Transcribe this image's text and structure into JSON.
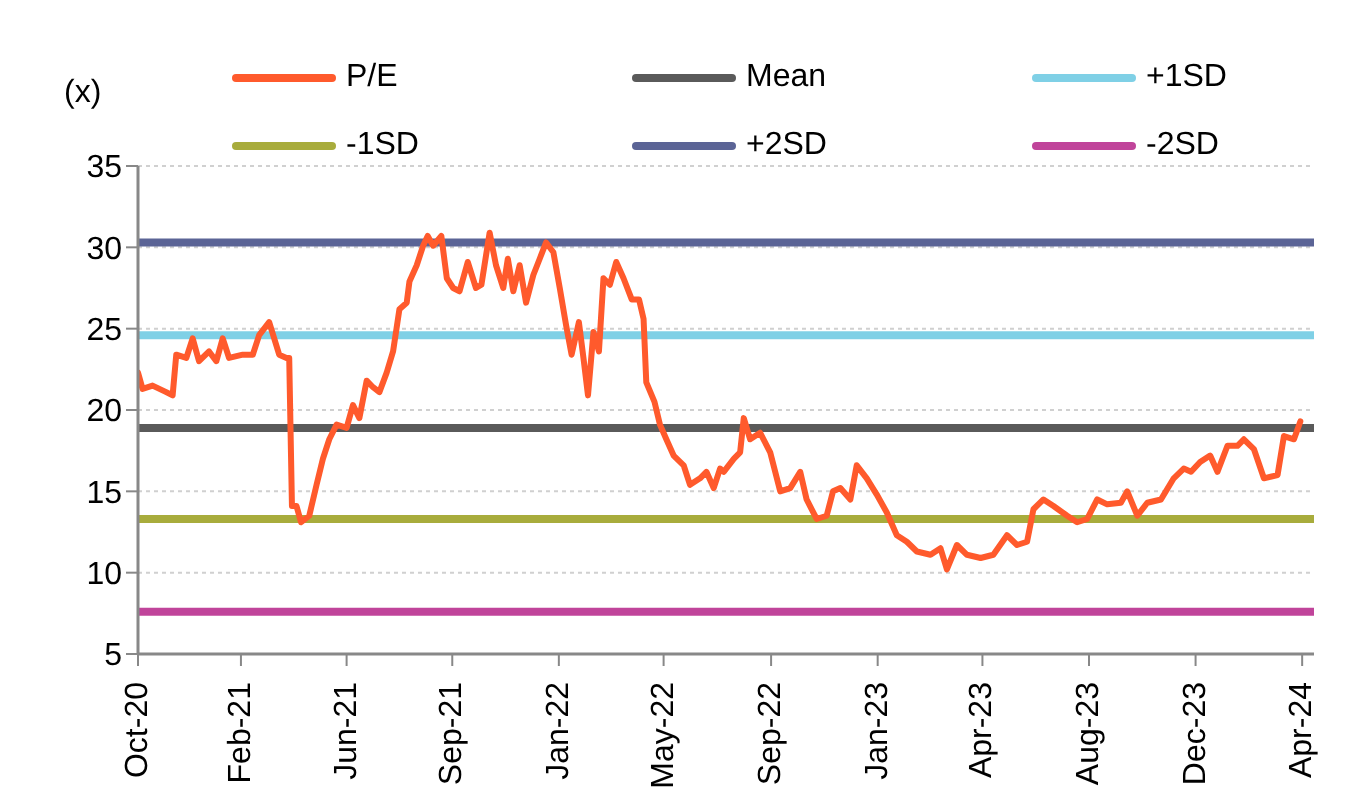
{
  "chart_data": {
    "type": "line",
    "ylabel": "(x)",
    "xlim": [
      "2020-10-15",
      "2024-04-28"
    ],
    "ylim": [
      5,
      35
    ],
    "yticks": [
      5,
      10,
      15,
      20,
      25,
      30,
      35
    ],
    "xticks": [
      {
        "value": "2020-10-15",
        "label": "Oct-20"
      },
      {
        "value": "2021-02-05",
        "label": "Feb-21"
      },
      {
        "value": "2021-06-01",
        "label": "Jun-21"
      },
      {
        "value": "2021-09-25",
        "label": "Sep-21"
      },
      {
        "value": "2022-01-20",
        "label": "Jan-22"
      },
      {
        "value": "2022-05-15",
        "label": "May-22"
      },
      {
        "value": "2022-09-10",
        "label": "Sep-22"
      },
      {
        "value": "2023-01-05",
        "label": "Jan-23"
      },
      {
        "value": "2023-04-30",
        "label": "Apr-23"
      },
      {
        "value": "2023-08-25",
        "label": "Aug-23"
      },
      {
        "value": "2023-12-20",
        "label": "Dec-23"
      },
      {
        "value": "2024-04-15",
        "label": "Apr-24"
      }
    ],
    "grid": "y",
    "legend": "top",
    "marker": "none",
    "line_style": "solid",
    "series": [
      {
        "name": "P/E",
        "color": "#ff5a2c",
        "x": [
          "2020-10-15",
          "2020-10-20",
          "2020-10-31",
          "2020-11-15",
          "2020-11-22",
          "2020-11-26",
          "2020-12-07",
          "2020-12-14",
          "2020-12-21",
          "2021-01-01",
          "2021-01-09",
          "2021-01-16",
          "2021-01-23",
          "2021-02-07",
          "2021-02-18",
          "2021-02-25",
          "2021-03-08",
          "2021-03-19",
          "2021-03-27",
          "2021-03-30",
          "2021-04-02",
          "2021-04-07",
          "2021-04-12",
          "2021-04-21",
          "2021-04-29",
          "2021-05-06",
          "2021-05-13",
          "2021-05-21",
          "2021-06-01",
          "2021-06-08",
          "2021-06-15",
          "2021-06-23",
          "2021-06-30",
          "2021-07-07",
          "2021-07-15",
          "2021-07-22",
          "2021-07-29",
          "2021-08-06",
          "2021-08-09",
          "2021-08-17",
          "2021-08-24",
          "2021-08-29",
          "2021-09-04",
          "2021-09-13",
          "2021-09-19",
          "2021-09-26",
          "2021-10-03",
          "2021-10-12",
          "2021-10-21",
          "2021-10-27",
          "2021-11-05",
          "2021-11-12",
          "2021-11-20",
          "2021-11-25",
          "2021-12-01",
          "2021-12-08",
          "2021-12-15",
          "2021-12-23",
          "2021-12-30",
          "2022-01-06",
          "2022-01-14",
          "2022-01-21",
          "2022-01-28",
          "2022-02-03",
          "2022-02-11",
          "2022-02-16",
          "2022-02-21",
          "2022-02-27",
          "2022-03-05",
          "2022-03-10",
          "2022-03-17",
          "2022-03-24",
          "2022-04-01",
          "2022-04-10",
          "2022-04-18",
          "2022-04-23",
          "2022-04-26",
          "2022-05-05",
          "2022-05-11",
          "2022-05-18",
          "2022-05-26",
          "2022-06-06",
          "2022-06-13",
          "2022-06-24",
          "2022-07-01",
          "2022-07-09",
          "2022-07-16",
          "2022-07-20",
          "2022-07-31",
          "2022-08-07",
          "2022-08-11",
          "2022-08-18",
          "2022-08-29",
          "2022-09-09",
          "2022-09-20",
          "2022-10-01",
          "2022-10-12",
          "2022-10-19",
          "2022-10-30",
          "2022-11-10",
          "2022-11-17",
          "2022-11-25",
          "2022-12-06",
          "2022-12-13",
          "2022-12-24",
          "2023-01-04",
          "2023-01-15",
          "2023-01-26",
          "2023-02-06",
          "2023-02-17",
          "2023-03-04",
          "2023-03-15",
          "2023-03-22",
          "2023-04-02",
          "2023-04-13",
          "2023-04-28",
          "2023-05-12",
          "2023-05-27",
          "2023-06-07",
          "2023-06-18",
          "2023-06-25",
          "2023-07-06",
          "2023-07-17",
          "2023-08-01",
          "2023-08-12",
          "2023-08-23",
          "2023-09-03",
          "2023-09-14",
          "2023-09-29",
          "2023-10-06",
          "2023-10-17",
          "2023-10-28",
          "2023-11-12",
          "2023-11-26",
          "2023-12-07",
          "2023-12-15",
          "2023-12-25",
          "2024-01-05",
          "2024-01-13",
          "2024-01-24",
          "2024-02-04",
          "2024-02-11",
          "2024-02-22",
          "2024-03-04",
          "2024-03-19",
          "2024-03-26",
          "2024-04-06",
          "2024-04-13"
        ],
        "values": [
          22.3,
          21.3,
          21.5,
          21.1,
          20.9,
          23.4,
          23.2,
          24.4,
          23.0,
          23.6,
          23.0,
          24.4,
          23.2,
          23.4,
          23.4,
          24.6,
          25.4,
          23.4,
          23.2,
          23.2,
          14.1,
          14.1,
          13.1,
          13.5,
          15.4,
          17.0,
          18.2,
          19.1,
          18.9,
          20.3,
          19.5,
          21.8,
          21.4,
          21.1,
          22.3,
          23.6,
          26.2,
          26.6,
          27.9,
          28.9,
          30.1,
          30.7,
          30.1,
          30.7,
          28.1,
          27.5,
          27.3,
          29.1,
          27.5,
          27.7,
          30.9,
          28.9,
          27.5,
          29.3,
          27.3,
          28.9,
          26.6,
          28.3,
          29.3,
          30.3,
          29.7,
          27.5,
          25.2,
          23.4,
          25.4,
          23.2,
          20.9,
          24.8,
          23.6,
          28.1,
          27.7,
          29.1,
          28.1,
          26.8,
          26.8,
          25.6,
          21.7,
          20.5,
          19.1,
          18.2,
          17.2,
          16.6,
          15.4,
          15.8,
          16.2,
          15.2,
          16.4,
          16.2,
          17.0,
          17.4,
          19.5,
          18.2,
          18.6,
          17.4,
          15.0,
          15.2,
          16.2,
          14.5,
          13.3,
          13.5,
          15.0,
          15.2,
          14.5,
          16.6,
          15.8,
          14.8,
          13.7,
          12.3,
          11.9,
          11.3,
          11.1,
          11.5,
          10.2,
          11.7,
          11.1,
          10.9,
          11.1,
          12.3,
          11.7,
          11.9,
          13.9,
          14.5,
          14.1,
          13.5,
          13.1,
          13.3,
          14.5,
          14.2,
          14.3,
          15.0,
          13.5,
          14.3,
          14.5,
          15.8,
          16.4,
          16.2,
          16.8,
          17.2,
          16.2,
          17.8,
          17.8,
          18.2,
          17.6,
          15.8,
          16.0,
          18.4,
          18.2,
          19.3
        ]
      },
      {
        "name": "Mean",
        "color": "#5a5a5a",
        "x": [
          "2020-10-15",
          "2024-04-28"
        ],
        "values": [
          18.9,
          18.9
        ]
      },
      {
        "name": "+1SD",
        "color": "#7fd0e6",
        "x": [
          "2020-10-15",
          "2024-04-28"
        ],
        "values": [
          24.6,
          24.6
        ]
      },
      {
        "name": "-1SD",
        "color": "#a8ac3c",
        "x": [
          "2020-10-15",
          "2024-04-28"
        ],
        "values": [
          13.3,
          13.3
        ]
      },
      {
        "name": "+2SD",
        "color": "#5b6496",
        "x": [
          "2020-10-15",
          "2024-04-28"
        ],
        "values": [
          30.3,
          30.3
        ]
      },
      {
        "name": "-2SD",
        "color": "#c0449a",
        "x": [
          "2020-10-15",
          "2024-04-28"
        ],
        "values": [
          7.6,
          7.6
        ]
      }
    ]
  }
}
